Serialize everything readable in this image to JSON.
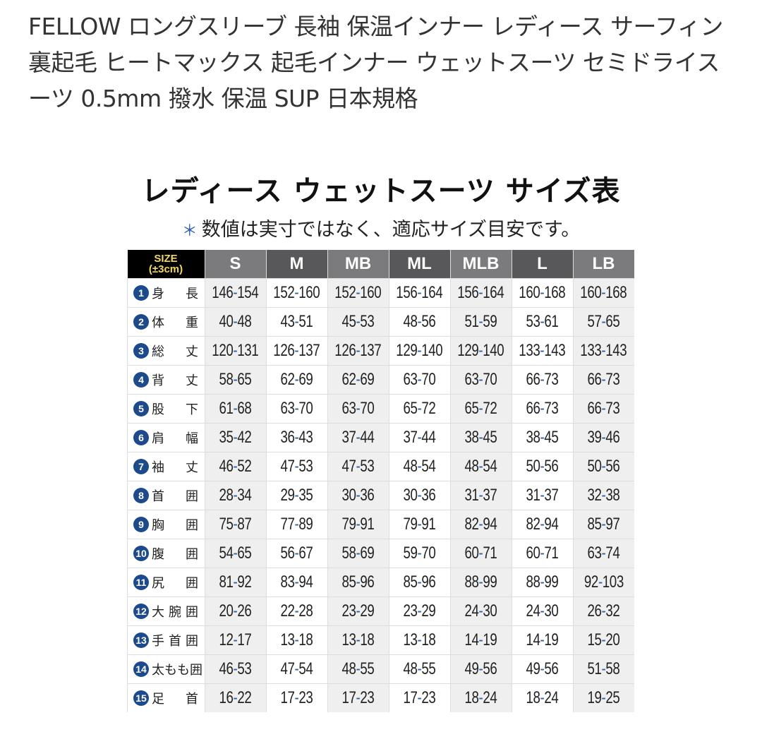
{
  "product": {
    "title": "FELLOW ロングスリーブ 長袖 保温インナー レディース サーフィン 裏起毛 ヒートマックス 起毛インナー ウェットスーツ セミドライスーツ 0.5mm 撥水 保温 SUP 日本規格"
  },
  "size_chart": {
    "title": "レディース ウェットスーツ サイズ表",
    "note_mark": "＊",
    "note": "数値は実寸ではなく、適応サイズ目安です。",
    "size_label": "SIZE",
    "tolerance": "(±3cm)",
    "columns": [
      "S",
      "M",
      "MB",
      "ML",
      "MLB",
      "L",
      "LB"
    ],
    "rows": [
      {
        "no": "1",
        "label": "身長",
        "values": [
          "146-154",
          "152-160",
          "152-160",
          "156-164",
          "156-164",
          "160-168",
          "160-168"
        ]
      },
      {
        "no": "2",
        "label": "体重",
        "values": [
          "40-48",
          "43-51",
          "45-53",
          "48-56",
          "51-59",
          "53-61",
          "57-65"
        ]
      },
      {
        "no": "3",
        "label": "総丈",
        "values": [
          "120-131",
          "126-137",
          "126-137",
          "129-140",
          "129-140",
          "133-143",
          "133-143"
        ]
      },
      {
        "no": "4",
        "label": "背丈",
        "values": [
          "58-65",
          "62-69",
          "62-69",
          "63-70",
          "63-70",
          "66-73",
          "66-73"
        ]
      },
      {
        "no": "5",
        "label": "股下",
        "values": [
          "61-68",
          "63-70",
          "63-70",
          "65-72",
          "65-72",
          "66-73",
          "66-73"
        ]
      },
      {
        "no": "6",
        "label": "肩幅",
        "values": [
          "35-42",
          "36-43",
          "37-44",
          "37-44",
          "38-45",
          "38-45",
          "39-46"
        ]
      },
      {
        "no": "7",
        "label": "袖丈",
        "values": [
          "46-52",
          "47-53",
          "47-53",
          "48-54",
          "48-54",
          "50-56",
          "50-56"
        ]
      },
      {
        "no": "8",
        "label": "首囲",
        "values": [
          "28-34",
          "29-35",
          "30-36",
          "30-36",
          "31-37",
          "31-37",
          "32-38"
        ]
      },
      {
        "no": "9",
        "label": "胸囲",
        "values": [
          "75-87",
          "77-89",
          "79-91",
          "79-91",
          "82-94",
          "82-94",
          "85-97"
        ]
      },
      {
        "no": "10",
        "label": "腹囲",
        "values": [
          "54-65",
          "56-67",
          "58-69",
          "59-70",
          "60-71",
          "60-71",
          "63-74"
        ]
      },
      {
        "no": "11",
        "label": "尻囲",
        "values": [
          "81-92",
          "83-94",
          "85-96",
          "85-96",
          "88-99",
          "88-99",
          "92-103"
        ]
      },
      {
        "no": "12",
        "label": "大腕囲",
        "values": [
          "20-26",
          "22-28",
          "23-29",
          "23-29",
          "24-30",
          "24-30",
          "26-32"
        ]
      },
      {
        "no": "13",
        "label": "手首囲",
        "values": [
          "12-17",
          "13-18",
          "13-18",
          "13-18",
          "14-19",
          "14-19",
          "15-20"
        ]
      },
      {
        "no": "14",
        "label": "太もも囲",
        "values": [
          "46-53",
          "47-54",
          "48-55",
          "48-55",
          "49-56",
          "49-56",
          "51-58"
        ]
      },
      {
        "no": "15",
        "label": "足首",
        "values": [
          "16-22",
          "17-23",
          "17-23",
          "17-23",
          "18-24",
          "18-24",
          "19-25"
        ]
      }
    ]
  },
  "colors": {
    "header_dark": "#58585a",
    "header_light": "#7b7b7d",
    "number_badge": "#1d4a8c",
    "dash": "#2b5fa8",
    "size_text": "#f2d95c"
  }
}
